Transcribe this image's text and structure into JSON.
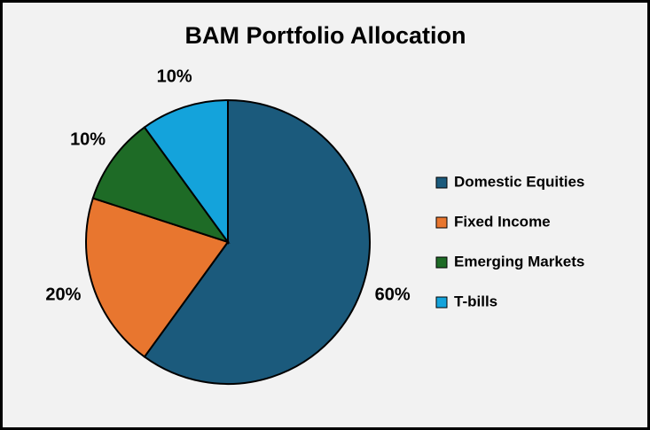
{
  "chart_data": {
    "type": "pie",
    "title": "BAM Portfolio Allocation",
    "categories": [
      "Domestic Equities",
      "Fixed Income",
      "Emerging Markets",
      "T-bills"
    ],
    "values": [
      60,
      20,
      10,
      10
    ],
    "value_labels": [
      "60%",
      "20%",
      "10%",
      "10%"
    ],
    "colors": [
      "#1b5a7c",
      "#e8762f",
      "#1e6b26",
      "#14a3db"
    ],
    "legend": "right"
  }
}
